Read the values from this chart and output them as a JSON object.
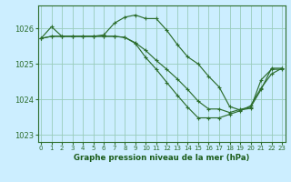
{
  "background_color": "#cceeff",
  "grid_color": "#99ccbb",
  "line_color": "#2d6e2d",
  "xlabel": "Graphe pression niveau de la mer (hPa)",
  "xlabel_color": "#1a5c1a",
  "ylim": [
    1022.8,
    1026.65
  ],
  "xlim": [
    -0.3,
    23.3
  ],
  "yticks": [
    1023,
    1024,
    1025,
    1026
  ],
  "xticks": [
    0,
    1,
    2,
    3,
    4,
    5,
    6,
    7,
    8,
    9,
    10,
    11,
    12,
    13,
    14,
    15,
    16,
    17,
    18,
    19,
    20,
    21,
    22,
    23
  ],
  "series": [
    [
      1025.72,
      1026.05,
      1025.78,
      1025.78,
      1025.78,
      1025.78,
      1025.82,
      1026.15,
      1026.32,
      1026.38,
      1026.28,
      1026.28,
      1025.95,
      1025.55,
      1025.2,
      1025.0,
      1024.65,
      1024.35,
      1023.8,
      1023.7,
      1023.75,
      1024.55,
      1024.85,
      1024.85
    ],
    [
      1025.72,
      1025.78,
      1025.78,
      1025.78,
      1025.78,
      1025.78,
      1025.78,
      1025.78,
      1025.75,
      1025.6,
      1025.38,
      1025.1,
      1024.85,
      1024.58,
      1024.28,
      1023.95,
      1023.73,
      1023.73,
      1023.63,
      1023.72,
      1023.78,
      1024.28,
      1024.88,
      1024.88
    ],
    [
      1025.72,
      1025.78,
      1025.78,
      1025.78,
      1025.78,
      1025.78,
      1025.78,
      1025.78,
      1025.75,
      1025.58,
      1025.18,
      1024.85,
      1024.48,
      1024.12,
      1023.78,
      1023.48,
      1023.48,
      1023.48,
      1023.58,
      1023.68,
      1023.82,
      1024.32,
      1024.72,
      1024.88
    ]
  ]
}
